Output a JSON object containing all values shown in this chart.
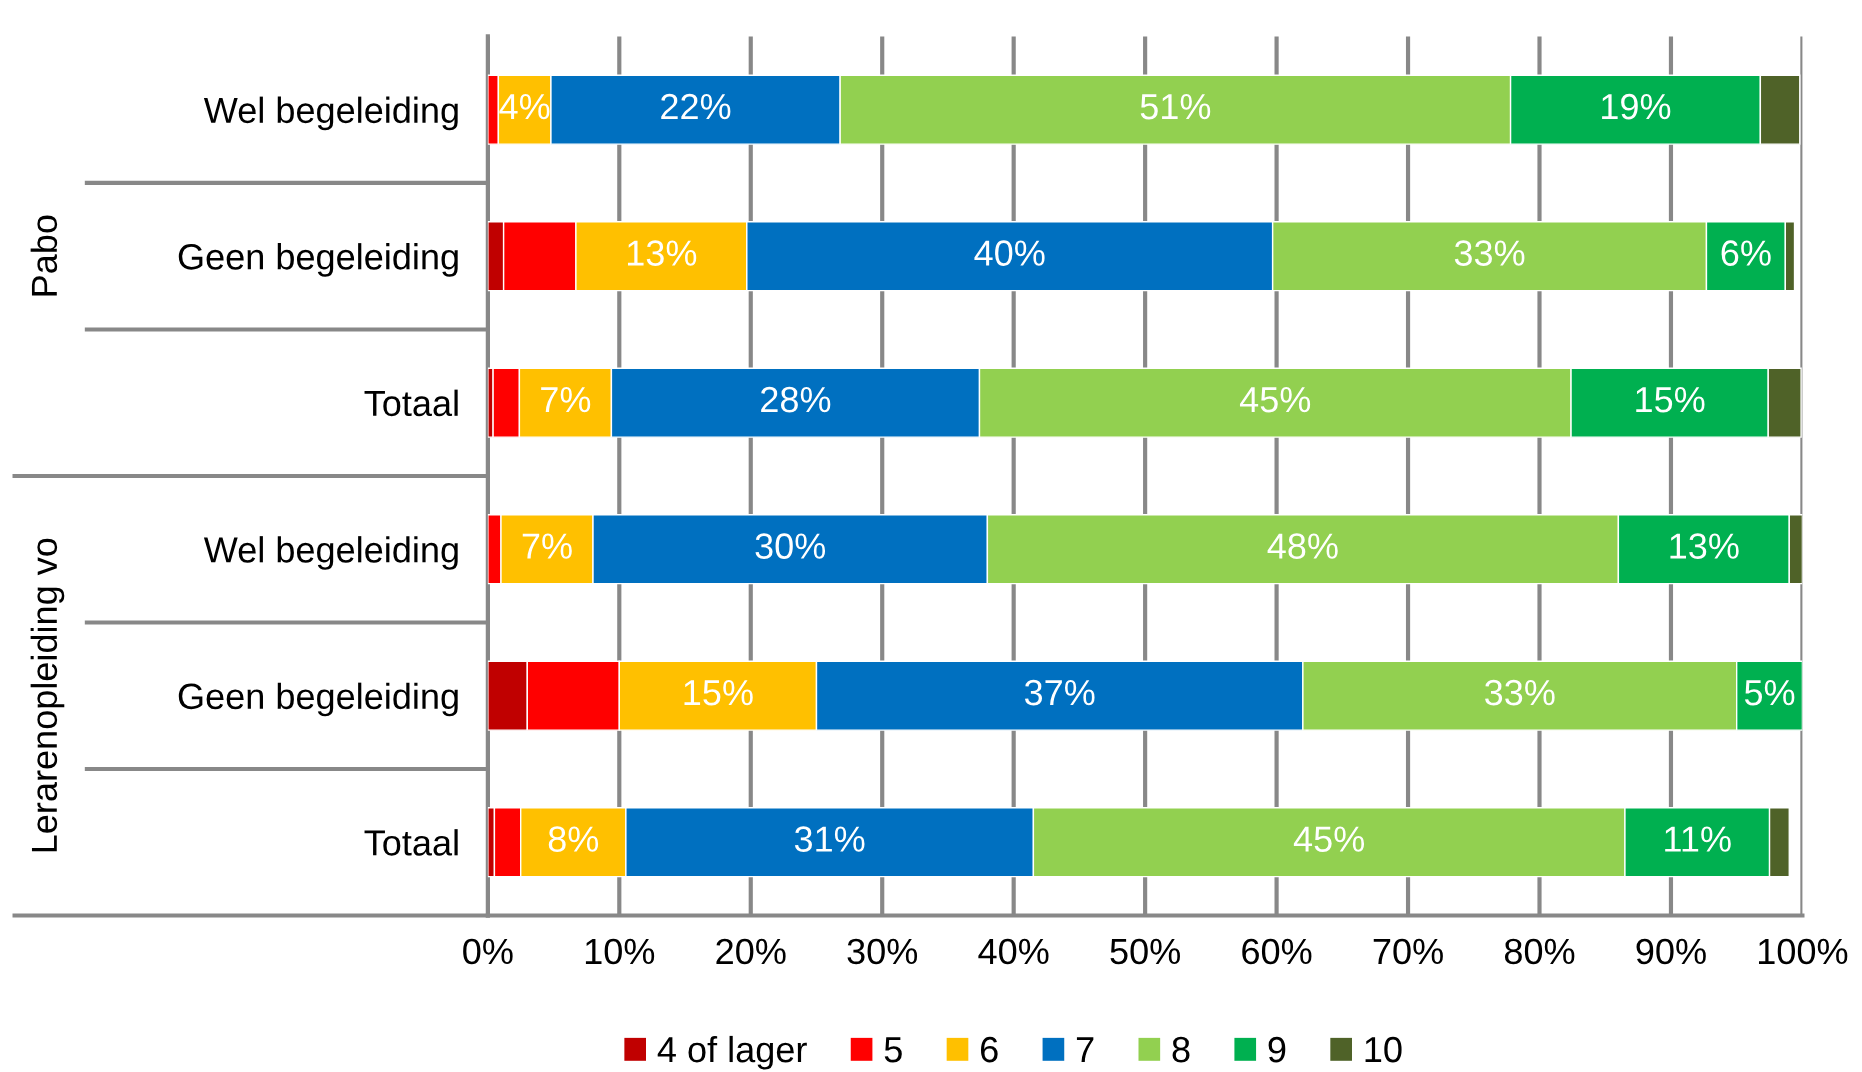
{
  "chart_data": {
    "type": "bar",
    "orientation": "horizontal",
    "stacked": true,
    "categories": [
      "Wel begeleiding",
      "Geen begeleiding",
      "Totaal",
      "Wel begeleiding",
      "Geen begeleiding",
      "Totaal"
    ],
    "series": [
      {
        "name": "4 of lager",
        "color": "#c00000",
        "values": [
          null,
          1.2,
          0.4,
          null,
          3,
          0.5
        ]
      },
      {
        "name": "5",
        "color": "#ff0000",
        "values": [
          0.8,
          5.5,
          2,
          1,
          7,
          2
        ]
      },
      {
        "name": "6",
        "color": "#ffc000",
        "values": [
          4,
          13,
          7,
          7,
          15,
          8
        ],
        "value_labels": [
          "4%",
          "13%",
          "7%",
          "7%",
          "15%",
          "8%"
        ]
      },
      {
        "name": "7",
        "color": "#0070c0",
        "values": [
          22,
          40,
          28,
          30,
          37,
          31
        ],
        "value_labels": [
          "22%",
          "40%",
          "28%",
          "30%",
          "37%",
          "31%"
        ]
      },
      {
        "name": "8",
        "color": "#92d050",
        "values": [
          51,
          33,
          45,
          48,
          33,
          45
        ],
        "value_labels": [
          "51%",
          "33%",
          "45%",
          "48%",
          "33%",
          "45%"
        ]
      },
      {
        "name": "9",
        "color": "#00b050",
        "values": [
          19,
          6,
          15,
          13,
          5,
          11
        ],
        "value_labels": [
          "19%",
          "6%",
          "15%",
          "13%",
          "5%",
          "11%"
        ]
      },
      {
        "name": "10",
        "color": "#4f6228",
        "values": [
          3,
          0.7,
          2.5,
          1,
          null,
          1.5
        ]
      }
    ],
    "xlim": [
      0,
      100
    ],
    "xticks": [
      {
        "value": 0,
        "label": "0%"
      },
      {
        "value": 10,
        "label": "10%"
      },
      {
        "value": 20,
        "label": "20%"
      },
      {
        "value": 30,
        "label": "30%"
      },
      {
        "value": 40,
        "label": "40%"
      },
      {
        "value": 50,
        "label": "50%"
      },
      {
        "value": 60,
        "label": "60%"
      },
      {
        "value": 70,
        "label": "70%"
      },
      {
        "value": 80,
        "label": "80%"
      },
      {
        "value": 90,
        "label": "90%"
      },
      {
        "value": 100,
        "label": "100%"
      }
    ],
    "annotations": [
      "Pabo",
      "Lerarenopleiding vo"
    ],
    "grid": "x",
    "legend": "bottom"
  }
}
